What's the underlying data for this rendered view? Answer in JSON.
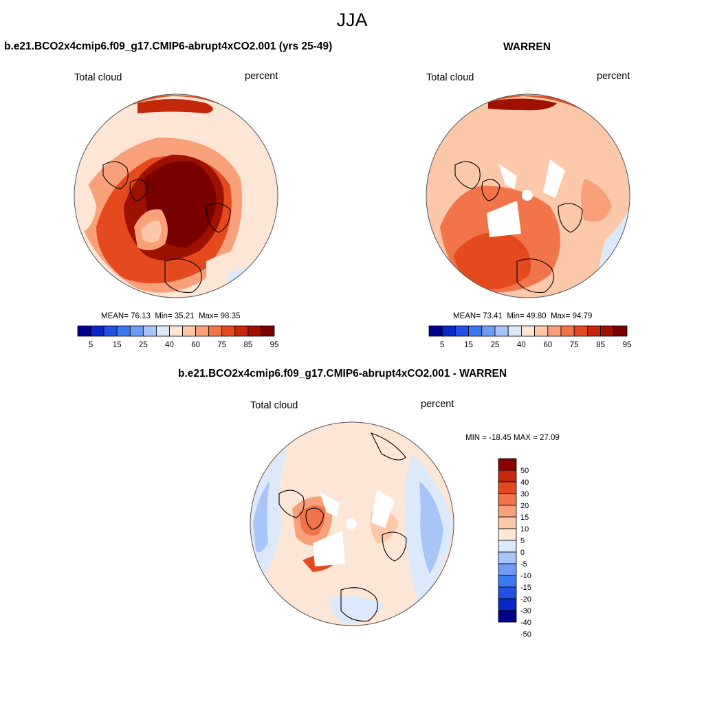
{
  "figure": {
    "title": "JJA"
  },
  "colors": {
    "palette_abs": [
      "#00008b",
      "#0a28c8",
      "#2050e6",
      "#3c78f0",
      "#6e9cf5",
      "#a8c4f8",
      "#dce9fb",
      "#fde6d6",
      "#fbc8aa",
      "#f8a07a",
      "#f2744a",
      "#e44a1e",
      "#c42808",
      "#9e1000",
      "#780000"
    ],
    "palette_diff": [
      "#00008b",
      "#0a28c8",
      "#2050e6",
      "#3c78f0",
      "#6e9cf5",
      "#a8c4f8",
      "#dce9fb",
      "#fde6d6",
      "#fbc8aa",
      "#f8a07a",
      "#f2744a",
      "#e44a1e",
      "#c42808",
      "#8b0000"
    ]
  },
  "chart_data": [
    {
      "type": "heatmap",
      "projection": "north-polar-stereographic",
      "title": "b.e21.BCO2x4cmip6.f09_g17.CMIP6-abrupt4xCO2.001 (yrs 25-49)",
      "left_label": "Total cloud",
      "right_label": "percent",
      "stats": {
        "mean_label": "MEAN=",
        "mean": "76.13",
        "min_label": "Min=",
        "min": "35.21",
        "max_label": "Max=",
        "max": "98.35"
      },
      "colorbar": {
        "orientation": "horizontal",
        "labels": [
          "5",
          "15",
          "25",
          "40",
          "60",
          "75",
          "85",
          "95"
        ]
      }
    },
    {
      "type": "heatmap",
      "projection": "north-polar-stereographic",
      "title": "WARREN",
      "left_label": "Total cloud",
      "right_label": "percent",
      "stats": {
        "mean_label": "MEAN=",
        "mean": "73.41",
        "min_label": "Min=",
        "min": "49.80",
        "max_label": "Max=",
        "max": "94.79"
      },
      "colorbar": {
        "orientation": "horizontal",
        "labels": [
          "5",
          "15",
          "25",
          "40",
          "60",
          "75",
          "85",
          "95"
        ]
      }
    },
    {
      "type": "heatmap",
      "projection": "north-polar-stereographic",
      "title": "b.e21.BCO2x4cmip6.f09_g17.CMIP6-abrupt4xCO2.001 - WARREN",
      "left_label": "Total cloud",
      "right_label": "percent",
      "minmax_text": "MIN = -18.45 MAX =  27.09",
      "colorbar": {
        "orientation": "vertical",
        "labels": [
          "50",
          "40",
          "30",
          "20",
          "15",
          "10",
          "5",
          "0",
          "-5",
          "-10",
          "-15",
          "-20",
          "-30",
          "-40",
          "-50"
        ]
      }
    }
  ]
}
